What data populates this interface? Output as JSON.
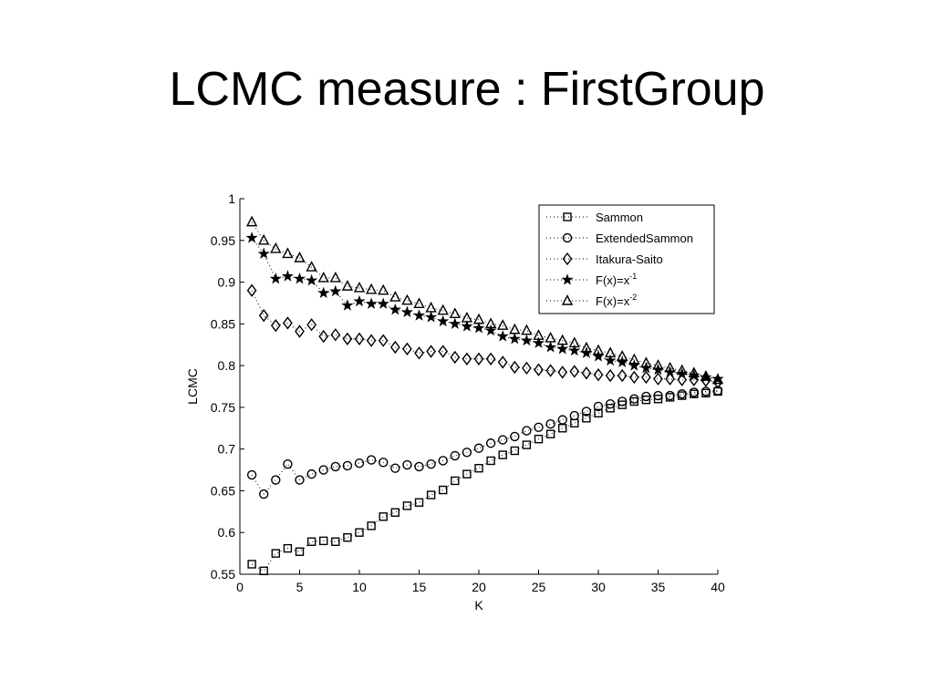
{
  "slide": {
    "title": "LCMC measure : FirstGroup"
  },
  "chart_data": {
    "type": "scatter",
    "title": "",
    "xlabel": "K",
    "ylabel": "LCMC",
    "xlim": [
      0,
      40
    ],
    "ylim": [
      0.55,
      1
    ],
    "xticks": [
      0,
      5,
      10,
      15,
      20,
      25,
      30,
      35,
      40
    ],
    "yticks": [
      0.55,
      0.6,
      0.65,
      0.7,
      0.75,
      0.8,
      0.85,
      0.9,
      0.95,
      1
    ],
    "grid": false,
    "legend_position": "top-right",
    "line_style": "dotted",
    "x": [
      1,
      2,
      3,
      4,
      5,
      6,
      7,
      8,
      9,
      10,
      11,
      12,
      13,
      14,
      15,
      16,
      17,
      18,
      19,
      20,
      21,
      22,
      23,
      24,
      25,
      26,
      27,
      28,
      29,
      30,
      31,
      32,
      33,
      34,
      35,
      36,
      37,
      38,
      39,
      40
    ],
    "series": [
      {
        "name": "Sammon",
        "marker": "square",
        "values": [
          0.562,
          0.554,
          0.575,
          0.581,
          0.577,
          0.589,
          0.59,
          0.589,
          0.594,
          0.6,
          0.608,
          0.619,
          0.624,
          0.632,
          0.636,
          0.645,
          0.651,
          0.662,
          0.67,
          0.677,
          0.686,
          0.693,
          0.698,
          0.705,
          0.712,
          0.718,
          0.725,
          0.731,
          0.737,
          0.743,
          0.749,
          0.753,
          0.757,
          0.759,
          0.76,
          0.762,
          0.764,
          0.766,
          0.767,
          0.769
        ]
      },
      {
        "name": "ExtendedSammon",
        "marker": "circle",
        "values": [
          0.669,
          0.646,
          0.663,
          0.682,
          0.663,
          0.67,
          0.675,
          0.679,
          0.68,
          0.683,
          0.687,
          0.684,
          0.677,
          0.681,
          0.679,
          0.682,
          0.686,
          0.692,
          0.696,
          0.701,
          0.707,
          0.711,
          0.715,
          0.722,
          0.726,
          0.73,
          0.735,
          0.74,
          0.745,
          0.751,
          0.754,
          0.757,
          0.76,
          0.763,
          0.764,
          0.764,
          0.766,
          0.768,
          0.769,
          0.77
        ]
      },
      {
        "name": "Itakura-Saito",
        "marker": "diamond",
        "values": [
          0.89,
          0.86,
          0.848,
          0.851,
          0.841,
          0.849,
          0.835,
          0.837,
          0.832,
          0.832,
          0.83,
          0.83,
          0.822,
          0.82,
          0.815,
          0.817,
          0.817,
          0.81,
          0.808,
          0.808,
          0.808,
          0.804,
          0.798,
          0.797,
          0.795,
          0.794,
          0.792,
          0.793,
          0.791,
          0.789,
          0.788,
          0.788,
          0.786,
          0.786,
          0.784,
          0.784,
          0.783,
          0.783,
          0.782,
          0.78
        ]
      },
      {
        "name": "F(x)=x",
        "superscript": "-1",
        "marker": "star",
        "values": [
          0.953,
          0.934,
          0.904,
          0.907,
          0.904,
          0.902,
          0.887,
          0.889,
          0.872,
          0.877,
          0.874,
          0.874,
          0.867,
          0.864,
          0.86,
          0.858,
          0.853,
          0.85,
          0.847,
          0.845,
          0.842,
          0.835,
          0.832,
          0.83,
          0.827,
          0.822,
          0.82,
          0.818,
          0.815,
          0.811,
          0.806,
          0.804,
          0.8,
          0.797,
          0.795,
          0.792,
          0.79,
          0.788,
          0.786,
          0.784
        ]
      },
      {
        "name": "F(x)=x",
        "superscript": "-2",
        "marker": "triangle",
        "values": [
          0.972,
          0.95,
          0.94,
          0.934,
          0.929,
          0.918,
          0.905,
          0.905,
          0.895,
          0.893,
          0.891,
          0.89,
          0.882,
          0.878,
          0.874,
          0.869,
          0.866,
          0.862,
          0.857,
          0.855,
          0.85,
          0.848,
          0.843,
          0.842,
          0.836,
          0.833,
          0.83,
          0.827,
          0.821,
          0.818,
          0.815,
          0.811,
          0.807,
          0.803,
          0.8,
          0.797,
          0.794,
          0.791,
          0.787,
          0.783
        ]
      }
    ]
  }
}
